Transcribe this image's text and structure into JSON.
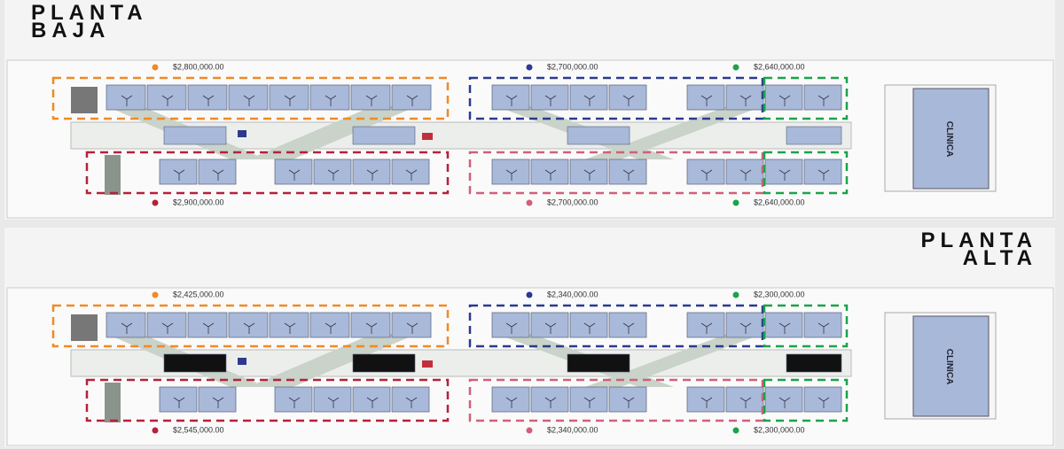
{
  "planta_baja": {
    "title": [
      "PLANTA",
      "BAJA"
    ],
    "top_prices": [
      {
        "label": "$2,800,000.00",
        "color": "#f08a24"
      },
      {
        "label": "$2,700,000.00",
        "color": "#2b3a8f"
      },
      {
        "label": "$2,640,000.00",
        "color": "#1aa34a"
      }
    ],
    "bottom_prices": [
      {
        "label": "$2,900,000.00",
        "color": "#b5213a"
      },
      {
        "label": "$2,700,000.00",
        "color": "#d0607a"
      },
      {
        "label": "$2,640,000.00",
        "color": "#1aa34a"
      }
    ],
    "clinic": "CLINICA"
  },
  "planta_alta": {
    "title": [
      "PLANTA",
      "ALTA"
    ],
    "top_prices": [
      {
        "label": "$2,425,000.00",
        "color": "#f08a24"
      },
      {
        "label": "$2,340,000.00",
        "color": "#2b3a8f"
      },
      {
        "label": "$2,300,000.00",
        "color": "#1aa34a"
      }
    ],
    "bottom_prices": [
      {
        "label": "$2,545,000.00",
        "color": "#b5213a"
      },
      {
        "label": "$2,340,000.00",
        "color": "#d0607a"
      },
      {
        "label": "$2,300,000.00",
        "color": "#1aa34a"
      }
    ],
    "clinic": "CLINICA"
  }
}
